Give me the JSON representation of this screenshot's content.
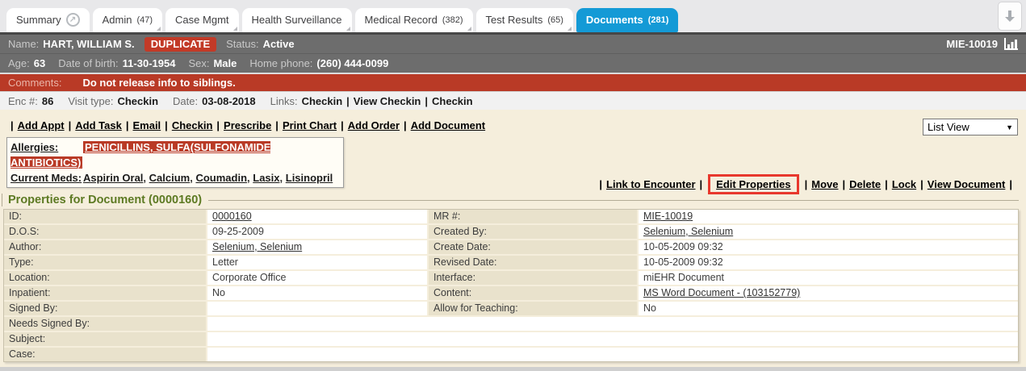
{
  "tabs": {
    "items": [
      {
        "label": "Summary",
        "count": "",
        "selected": false,
        "has_icon": true
      },
      {
        "label": "Admin",
        "count": "(47)",
        "selected": false,
        "has_icon": false
      },
      {
        "label": "Case Mgmt",
        "count": "",
        "selected": false,
        "has_icon": false
      },
      {
        "label": "Health Surveillance",
        "count": "",
        "selected": false,
        "has_icon": false
      },
      {
        "label": "Medical Record",
        "count": "(382)",
        "selected": false,
        "has_icon": false
      },
      {
        "label": "Test Results",
        "count": "(65)",
        "selected": false,
        "has_icon": false
      },
      {
        "label": "Documents",
        "count": "(281)",
        "selected": true,
        "has_icon": false
      }
    ],
    "summary_icon": "external-arrow-circle",
    "corner_icon": "download-arrow"
  },
  "colors": {
    "accent_blue": "#149ad6",
    "alert_red": "#b93a26",
    "heading_green": "#5d7a23",
    "banner_gray": "#6d6d6d"
  },
  "banner": {
    "name_label": "Name:",
    "name": "HART, WILLIAM S.",
    "duplicate_badge": "DUPLICATE",
    "status_label": "Status:",
    "status": "Active",
    "mrn": "MIE-10019",
    "age_label": "Age:",
    "age": "63",
    "dob_label": "Date of birth:",
    "dob": "11-30-1954",
    "sex_label": "Sex:",
    "sex": "Male",
    "phone_label": "Home phone:",
    "phone": "(260) 444-0099"
  },
  "comments": {
    "label": "Comments:",
    "text": "Do not release info to siblings."
  },
  "encounter": {
    "enc_label": "Enc #:",
    "enc": "86",
    "visit_label": "Visit type:",
    "visit": "Checkin",
    "date_label": "Date:",
    "date": "03-08-2018",
    "links_label": "Links:",
    "links": [
      "Checkin",
      "View Checkin",
      "Checkin"
    ]
  },
  "actions": [
    "Add Appt",
    "Add Task",
    "Email",
    "Checkin",
    "Prescribe",
    "Print Chart",
    "Add Order",
    "Add Document"
  ],
  "view_select": {
    "value": "List View"
  },
  "allergies": {
    "label": "Allergies:",
    "value": "PENICILLINS, SULFA(SULFONAMIDE ANTIBIOTICS)"
  },
  "current_meds": {
    "label": "Current Meds:",
    "items": [
      "Aspirin Oral",
      "Calcium",
      "Coumadin",
      "Lasix",
      "Lisinopril"
    ]
  },
  "doc_actions": {
    "items": [
      "Link to Encounter",
      "Edit Properties",
      "Move",
      "Delete",
      "Lock",
      "View Document"
    ],
    "highlighted": "Edit Properties"
  },
  "properties": {
    "title": "Properties for Document (0000160)",
    "rows": [
      {
        "l1": "ID:",
        "v1": "0000160",
        "link1": true,
        "l2": "MR #:",
        "v2": "MIE-10019",
        "link2": true,
        "full": false
      },
      {
        "l1": "D.O.S:",
        "v1": "09-25-2009",
        "link1": false,
        "l2": "Created By:",
        "v2": "Selenium, Selenium",
        "link2": true,
        "full": false
      },
      {
        "l1": "Author:",
        "v1": "Selenium, Selenium",
        "link1": true,
        "l2": "Create Date:",
        "v2": "10-05-2009 09:32",
        "link2": false,
        "full": false
      },
      {
        "l1": "Type:",
        "v1": "Letter",
        "link1": false,
        "l2": "Revised Date:",
        "v2": "10-05-2009 09:32",
        "link2": false,
        "full": false
      },
      {
        "l1": "Location:",
        "v1": "Corporate Office",
        "link1": false,
        "l2": "Interface:",
        "v2": "miEHR Document",
        "link2": false,
        "full": false
      },
      {
        "l1": "Inpatient:",
        "v1": "No",
        "link1": false,
        "l2": "Content:",
        "v2": "MS Word Document - (103152779)",
        "link2": true,
        "full": false
      },
      {
        "l1": "Signed By:",
        "v1": "",
        "link1": false,
        "l2": "Allow for Teaching:",
        "v2": "No",
        "link2": false,
        "full": false
      },
      {
        "l1": "Needs Signed By:",
        "v1": "",
        "link1": false,
        "l2": "",
        "v2": "",
        "link2": false,
        "full": true
      },
      {
        "l1": "Subject:",
        "v1": "",
        "link1": false,
        "l2": "",
        "v2": "",
        "link2": false,
        "full": true
      },
      {
        "l1": "Case:",
        "v1": "",
        "link1": false,
        "l2": "",
        "v2": "",
        "link2": false,
        "full": true
      }
    ]
  }
}
